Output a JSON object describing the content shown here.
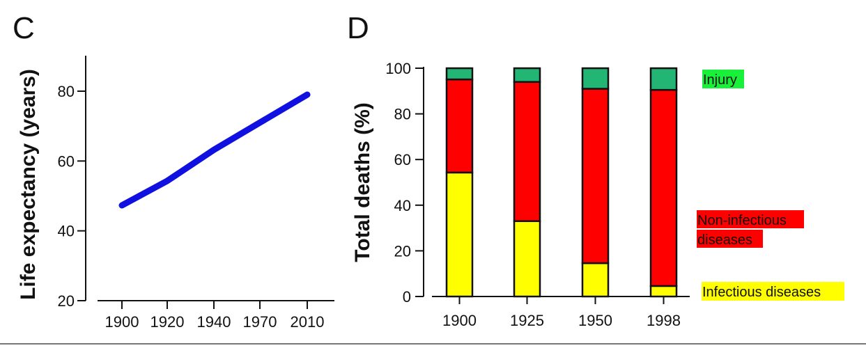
{
  "chart_data": [
    {
      "panel_label": "C",
      "type": "line",
      "xlabel": "",
      "ylabel": "Life expectancy (years)",
      "x_tick_labels": [
        "1900",
        "1920",
        "1940",
        "1970",
        "2010"
      ],
      "y_ticks": [
        20,
        40,
        60,
        80
      ],
      "ylim": [
        20,
        90
      ],
      "grid": false,
      "series": [
        {
          "color": "#1010e0",
          "values": [
            47.3,
            54.3,
            63.2,
            71.0,
            79.0
          ]
        }
      ]
    },
    {
      "panel_label": "D",
      "type": "bar",
      "stacked": true,
      "xlabel": "",
      "ylabel": "Total deaths  (%)",
      "categories": [
        "1900",
        "1925",
        "1950",
        "1998"
      ],
      "y_ticks": [
        0,
        20,
        40,
        60,
        80,
        100
      ],
      "ylim": [
        0,
        100
      ],
      "grid": false,
      "legend_placement": "right",
      "series": [
        {
          "name": "Infectious diseases",
          "color": "#ffff00",
          "label_bg": "#ffff00",
          "values": [
            54.3,
            33.0,
            14.6,
            4.6
          ]
        },
        {
          "name": "Non-infectious diseases",
          "label_lines": [
            "Non-infectious",
            "diseases"
          ],
          "color": "#ff0000",
          "label_bg": "#ff0000",
          "values": [
            40.8,
            61.0,
            76.4,
            85.9
          ]
        },
        {
          "name": "Injury",
          "color": "#22b573",
          "label_bg": "#19f03a",
          "values": [
            4.9,
            6.0,
            9.0,
            9.5
          ]
        }
      ]
    }
  ]
}
